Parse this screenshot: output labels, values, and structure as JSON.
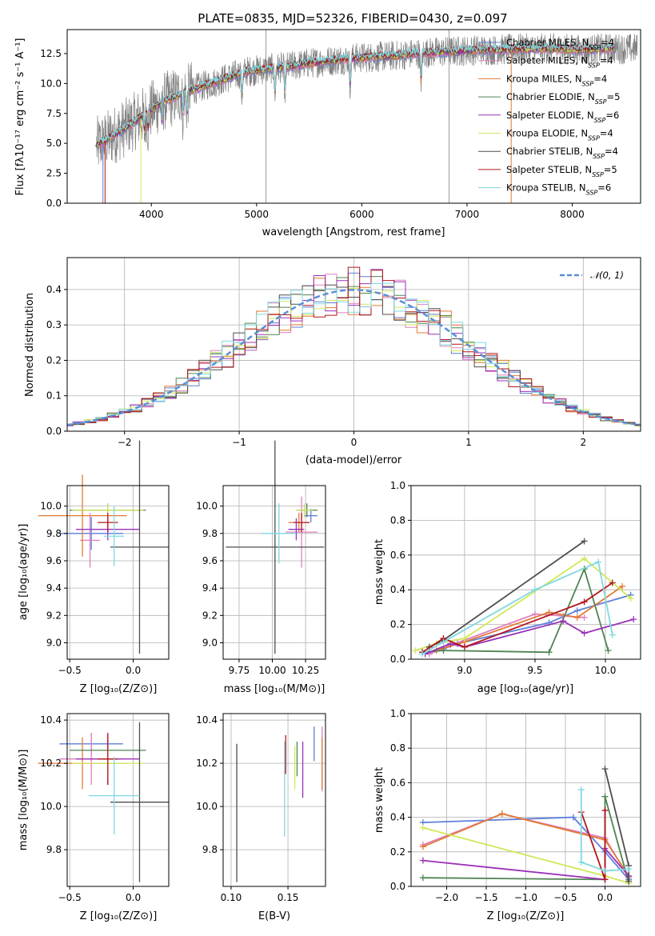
{
  "figure": {
    "title": "PLATE=0835, MJD=52326, FIBERID=0430, z=0.097",
    "models": [
      {
        "name": "Chabrier MILES",
        "nssp": "4",
        "color": "#5f7fd8"
      },
      {
        "name": "Salpeter MILES",
        "nssp": "4",
        "color": "#e07fbe"
      },
      {
        "name": "Kroupa MILES",
        "nssp": "4",
        "color": "#e07a34"
      },
      {
        "name": "Chabrier ELODIE",
        "nssp": "5",
        "color": "#4f8451"
      },
      {
        "name": "Salpeter ELODIE",
        "nssp": "6",
        "color": "#9a31b8"
      },
      {
        "name": "Kroupa ELODIE",
        "nssp": "4",
        "color": "#cfe85a"
      },
      {
        "name": "Chabrier STELIB",
        "nssp": "4",
        "color": "#4e4e4e"
      },
      {
        "name": "Salpeter STELIB",
        "nssp": "5",
        "color": "#b2161c"
      },
      {
        "name": "Kroupa STELIB",
        "nssp": "6",
        "color": "#7fd8e0"
      }
    ]
  },
  "chart_data": [
    {
      "id": "spectrum",
      "type": "line",
      "xlabel": "wavelength [Angstrom, rest frame]",
      "ylabel": "Flux [fλ10⁻¹⁷ erg cm⁻² s⁻¹ A⁻¹]",
      "xlim": [
        3200,
        8650
      ],
      "ylim": [
        0,
        14.5
      ],
      "xticks": [
        "4000",
        "5000",
        "6000",
        "7000",
        "8000"
      ],
      "yticks": [
        "0.0",
        "2.5",
        "5.0",
        "7.5",
        "10.0",
        "12.5"
      ],
      "legend": "upper right",
      "data_envelope": {
        "x": [
          3480,
          3700,
          3900,
          4100,
          4300,
          4500,
          4700,
          4900,
          5100,
          5300,
          5500,
          5700,
          5900,
          6100,
          6300,
          6500,
          6700,
          6900,
          7100,
          7300,
          7500,
          7700,
          7900,
          8100,
          8300,
          8620
        ],
        "y": [
          4.8,
          6.0,
          7.2,
          8.4,
          9.2,
          9.8,
          10.4,
          11.0,
          11.2,
          11.4,
          11.7,
          11.9,
          12.1,
          12.2,
          12.3,
          12.5,
          12.6,
          12.7,
          12.8,
          12.8,
          12.9,
          12.9,
          12.9,
          12.8,
          12.9,
          12.9
        ]
      }
    },
    {
      "id": "residual-histogram",
      "type": "line",
      "xlabel": "(data-model)/error",
      "ylabel": "Normed distribution",
      "xlim": [
        -2.5,
        2.5
      ],
      "ylim": [
        0,
        0.49
      ],
      "xticks": [
        "−2",
        "−1",
        "0",
        "1",
        "2"
      ],
      "yticks": [
        "0.0",
        "0.1",
        "0.2",
        "0.3",
        "0.4"
      ],
      "grid": true,
      "legend": "upper right",
      "reference": {
        "name": "𝒩(0, 1)",
        "mu": 0,
        "sigma": 1,
        "color": "#5b8ed6"
      },
      "bin_width": 0.1
    },
    {
      "id": "age-vs-Z",
      "type": "scatter",
      "xlabel": "Z [log₁₀(Z/Z⊙)]",
      "ylabel": "age  [log₁₀(age/yr)]",
      "xlim": [
        -0.52,
        0.28
      ],
      "ylim": [
        8.88,
        10.15
      ],
      "xticks": [
        "−0.5",
        "0.0"
      ],
      "yticks": [
        "9.0",
        "9.2",
        "9.4",
        "9.6",
        "9.8",
        "10.0"
      ],
      "grid": true,
      "points": [
        {
          "x": -0.33,
          "xerr": 0.25,
          "y": 9.8,
          "yerr": 0.12
        },
        {
          "x": -0.34,
          "xerr": 0.08,
          "y": 9.75,
          "yerr": 0.2
        },
        {
          "x": -0.4,
          "xerr": 0.35,
          "y": 9.93,
          "yerr": 0.3
        },
        {
          "x": -0.2,
          "xerr": 0.3,
          "y": 9.97,
          "yerr": 0.05
        },
        {
          "x": -0.2,
          "xerr": 0.25,
          "y": 9.83,
          "yerr": 0.08
        },
        {
          "x": -0.2,
          "xerr": 0.28,
          "y": 9.97,
          "yerr": 0.05
        },
        {
          "x": 0.05,
          "xerr": 0.23,
          "y": 9.7,
          "yerr": 0.78
        },
        {
          "x": -0.2,
          "xerr": 0.08,
          "y": 9.88,
          "yerr": 0.07
        },
        {
          "x": -0.15,
          "xerr": 0.08,
          "y": 9.78,
          "yerr": 0.22
        }
      ]
    },
    {
      "id": "age-vs-mass",
      "type": "scatter",
      "xlabel": "mass [log₁₀(M/M⊙)]",
      "ylabel": "",
      "xlim": [
        9.63,
        10.4
      ],
      "ylim": [
        8.88,
        10.15
      ],
      "xticks": [
        "9.75",
        "10.00",
        "10.25"
      ],
      "yticks": [
        "9.0",
        "9.2",
        "9.4",
        "9.6",
        "9.8",
        "10.0"
      ],
      "grid": true,
      "points": [
        {
          "x": 10.29,
          "xerr": 0.05,
          "y": 9.93,
          "yerr": 0.05
        },
        {
          "x": 10.22,
          "xerr": 0.12,
          "y": 9.81,
          "yerr": 0.26
        },
        {
          "x": 10.2,
          "xerr": 0.08,
          "y": 9.88,
          "yerr": 0.07
        },
        {
          "x": 10.26,
          "xerr": 0.08,
          "y": 9.97,
          "yerr": 0.05
        },
        {
          "x": 10.18,
          "xerr": 0.06,
          "y": 9.83,
          "yerr": 0.08
        },
        {
          "x": 10.24,
          "xerr": 0.06,
          "y": 9.97,
          "yerr": 0.05
        },
        {
          "x": 10.02,
          "xerr": 0.37,
          "y": 9.7,
          "yerr": 0.78
        },
        {
          "x": 10.22,
          "xerr": 0.06,
          "y": 9.88,
          "yerr": 0.07
        },
        {
          "x": 10.05,
          "xerr": 0.13,
          "y": 9.8,
          "yerr": 0.22
        }
      ]
    },
    {
      "id": "mass-weight-vs-age",
      "type": "line",
      "xlabel": "age  [log₁₀(age/yr)]",
      "ylabel": "mass weight",
      "xlim": [
        8.62,
        10.25
      ],
      "ylim": [
        0,
        1.0
      ],
      "xticks": [
        "9.0",
        "9.5",
        "10.0"
      ],
      "yticks": [
        "0.0",
        "0.2",
        "0.4",
        "0.6",
        "0.8",
        "1.0"
      ],
      "grid": true,
      "series": [
        {
          "x": [
            8.75,
            8.85,
            8.95,
            9.6,
            9.8,
            10.18
          ],
          "y": [
            0.04,
            0.06,
            0.09,
            0.21,
            0.28,
            0.37
          ]
        },
        {
          "x": [
            8.75,
            8.9,
            9.5,
            9.7,
            9.85
          ],
          "y": [
            0.03,
            0.08,
            0.26,
            0.25,
            0.24
          ]
        },
        {
          "x": [
            8.8,
            9.0,
            9.6,
            9.8,
            10.12
          ],
          "y": [
            0.05,
            0.1,
            0.27,
            0.24,
            0.42
          ]
        },
        {
          "x": [
            8.7,
            8.85,
            9.6,
            9.85,
            10.02
          ],
          "y": [
            0.04,
            0.05,
            0.04,
            0.52,
            0.05
          ]
        },
        {
          "x": [
            8.72,
            8.9,
            9.0,
            9.7,
            9.85,
            10.2
          ],
          "y": [
            0.03,
            0.09,
            0.07,
            0.22,
            0.15,
            0.23
          ]
        },
        {
          "x": [
            8.65,
            8.8,
            9.0,
            9.85,
            10.18
          ],
          "y": [
            0.05,
            0.09,
            0.12,
            0.58,
            0.35
          ]
        },
        {
          "x": [
            8.75,
            8.85,
            9.85
          ],
          "y": [
            0.07,
            0.11,
            0.68
          ]
        },
        {
          "x": [
            8.7,
            8.85,
            9.0,
            9.85,
            10.05
          ],
          "y": [
            0.04,
            0.12,
            0.07,
            0.33,
            0.44
          ]
        },
        {
          "x": [
            8.7,
            8.85,
            9.5,
            9.95,
            10.05
          ],
          "y": [
            0.03,
            0.1,
            0.4,
            0.56,
            0.14
          ]
        }
      ]
    },
    {
      "id": "mass-vs-Z",
      "type": "scatter",
      "xlabel": "Z [log₁₀(Z/Z⊙)]",
      "ylabel": "mass [log₁₀(M/M⊙)]",
      "xlim": [
        -0.52,
        0.28
      ],
      "ylim": [
        9.63,
        10.43
      ],
      "xticks": [
        "−0.5",
        "0.0"
      ],
      "yticks": [
        "9.8",
        "10.0",
        "10.2",
        "10.4"
      ],
      "grid": true,
      "points": [
        {
          "x": -0.33,
          "xerr": 0.25,
          "y": 10.29,
          "yerr": 0.05
        },
        {
          "x": -0.33,
          "xerr": 0.25,
          "y": 10.22,
          "yerr": 0.12
        },
        {
          "x": -0.4,
          "xerr": 0.35,
          "y": 10.2,
          "yerr": 0.12
        },
        {
          "x": -0.2,
          "xerr": 0.3,
          "y": 10.26,
          "yerr": 0.05
        },
        {
          "x": -0.2,
          "xerr": 0.25,
          "y": 10.22,
          "yerr": 0.12
        },
        {
          "x": -0.2,
          "xerr": 0.28,
          "y": 10.2,
          "yerr": 0.07
        },
        {
          "x": 0.05,
          "xerr": 0.23,
          "y": 10.02,
          "yerr": 0.37
        },
        {
          "x": -0.2,
          "xerr": 0.08,
          "y": 10.22,
          "yerr": 0.12
        },
        {
          "x": -0.15,
          "xerr": 0.2,
          "y": 10.05,
          "yerr": 0.18
        }
      ]
    },
    {
      "id": "mass-vs-ebv",
      "type": "scatter",
      "xlabel": "E(B-V)",
      "ylabel": "",
      "xlim": [
        0.093,
        0.183
      ],
      "ylim": [
        9.63,
        10.43
      ],
      "xticks": [
        "0.10",
        "0.15"
      ],
      "yticks": [
        "9.8",
        "10.0",
        "10.2",
        "10.4"
      ],
      "grid": true,
      "points": [
        {
          "x": 0.173,
          "y": 10.29,
          "yerr": 0.08
        },
        {
          "x": 0.18,
          "y": 10.22,
          "yerr": 0.15
        },
        {
          "x": 0.18,
          "y": 10.2,
          "yerr": 0.12
        },
        {
          "x": 0.158,
          "y": 10.22,
          "yerr": 0.08
        },
        {
          "x": 0.163,
          "y": 10.17,
          "yerr": 0.13
        },
        {
          "x": 0.156,
          "y": 10.18,
          "yerr": 0.1
        },
        {
          "x": 0.105,
          "y": 9.97,
          "yerr": 0.32
        },
        {
          "x": 0.148,
          "y": 10.24,
          "yerr": 0.09
        },
        {
          "x": 0.147,
          "y": 10.08,
          "yerr": 0.22
        }
      ]
    },
    {
      "id": "mass-weight-vs-Z",
      "type": "line",
      "xlabel": "Z [log₁₀(Z/Z⊙)]",
      "ylabel": "mass weight",
      "xlim": [
        -2.45,
        0.45
      ],
      "ylim": [
        0,
        1.0
      ],
      "xticks": [
        "−2.0",
        "−1.5",
        "−1.0",
        "−0.5",
        "0.0"
      ],
      "yticks": [
        "0.0",
        "0.2",
        "0.4",
        "0.6",
        "0.8",
        "1.0"
      ],
      "grid": true,
      "series": [
        {
          "x": [
            -2.3,
            -0.4,
            0.0,
            0.3
          ],
          "y": [
            0.37,
            0.4,
            0.2,
            0.04
          ]
        },
        {
          "x": [
            -2.3,
            -1.3,
            0.0,
            0.3
          ],
          "y": [
            0.24,
            0.42,
            0.28,
            0.05
          ]
        },
        {
          "x": [
            -2.3,
            -1.3,
            0.0,
            0.3
          ],
          "y": [
            0.23,
            0.42,
            0.27,
            0.06
          ]
        },
        {
          "x": [
            -2.3,
            0.0,
            0.0,
            0.3
          ],
          "y": [
            0.05,
            0.04,
            0.52,
            0.02
          ]
        },
        {
          "x": [
            -2.3,
            0.0,
            0.0,
            0.3
          ],
          "y": [
            0.15,
            0.04,
            0.22,
            0.06
          ]
        },
        {
          "x": [
            -2.3,
            0.0,
            0.3
          ],
          "y": [
            0.34,
            0.06,
            0.02
          ]
        },
        {
          "x": [
            0.0,
            0.3,
            0.3
          ],
          "y": [
            0.68,
            0.12,
            0.03
          ]
        },
        {
          "x": [
            -0.3,
            0.0,
            0.0
          ],
          "y": [
            0.43,
            0.04,
            0.44
          ]
        },
        {
          "x": [
            -0.3,
            -0.3,
            0.0,
            0.3
          ],
          "y": [
            0.56,
            0.14,
            0.09,
            0.1
          ]
        }
      ]
    }
  ]
}
